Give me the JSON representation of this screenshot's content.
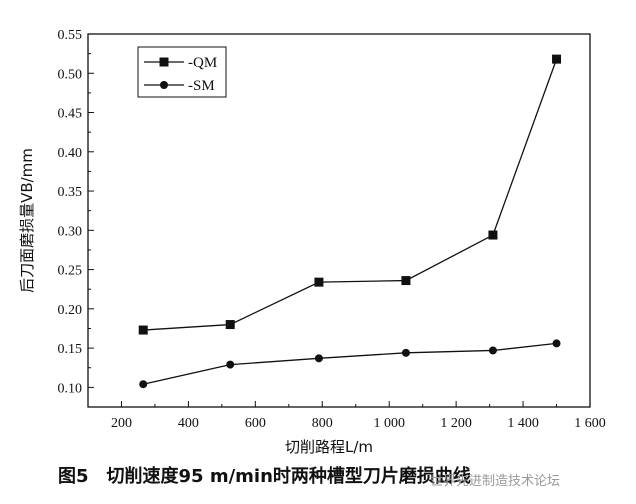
{
  "chart_data": {
    "type": "line",
    "ylabel": "后刀面磨损量VB/mm",
    "xlabel": "切削路程L/m",
    "xlim": [
      100,
      1600
    ],
    "ylim": [
      0.075,
      0.55
    ],
    "x_ticks": [
      "200",
      "400",
      "600",
      "800",
      "1 000",
      "1 200",
      "1 400",
      "1 600"
    ],
    "x_tick_values": [
      200,
      400,
      600,
      800,
      1000,
      1200,
      1400,
      1600
    ],
    "y_ticks": [
      "0.10",
      "0.15",
      "0.20",
      "0.25",
      "0.30",
      "0.35",
      "0.40",
      "0.45",
      "0.50",
      "0.55"
    ],
    "y_tick_values": [
      0.1,
      0.15,
      0.2,
      0.25,
      0.3,
      0.35,
      0.4,
      0.45,
      0.5,
      0.55
    ],
    "legend_position": "top-left",
    "series": [
      {
        "name": "-QM",
        "marker": "square",
        "x": [
          265,
          525,
          790,
          1050,
          1310,
          1500
        ],
        "values": [
          0.173,
          0.18,
          0.234,
          0.236,
          0.294,
          0.518
        ]
      },
      {
        "name": "-SM",
        "marker": "circle",
        "x": [
          265,
          525,
          790,
          1050,
          1310,
          1500
        ],
        "values": [
          0.104,
          0.129,
          0.137,
          0.144,
          0.147,
          0.156
        ]
      }
    ]
  },
  "caption": {
    "figure_label": "图5",
    "text": "切削速度95 m/min时两种槽型刀片磨损曲线"
  },
  "watermark": "世界先进制造技术论坛"
}
